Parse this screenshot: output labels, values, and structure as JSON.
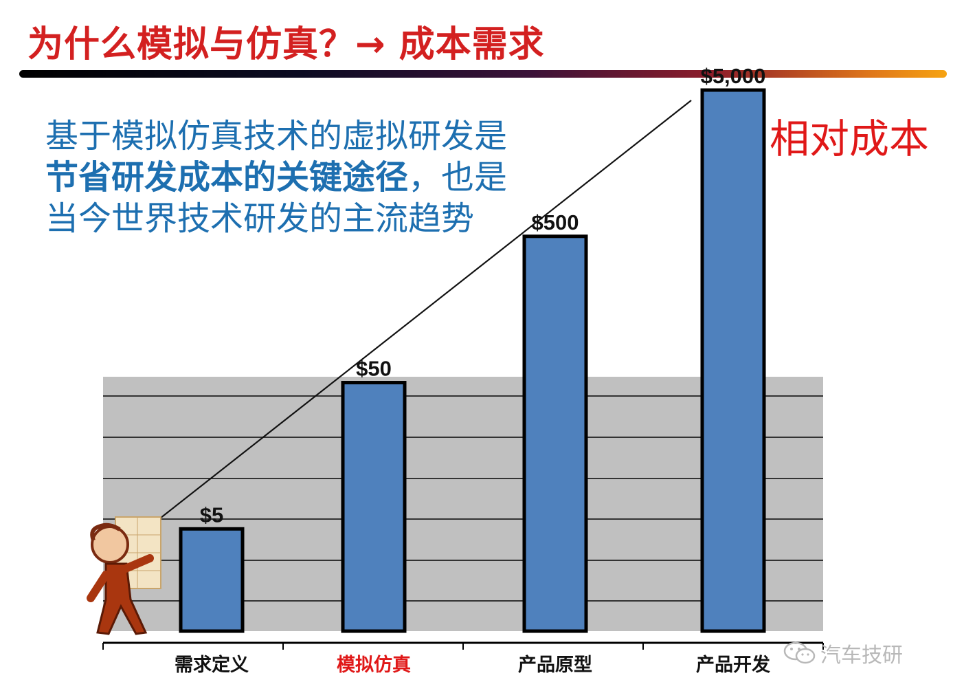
{
  "slide": {
    "title": "为什么模拟与仿真？→ 成本需求",
    "body_line1": "基于模拟仿真技术的虚拟研发是",
    "body_line2_bold": "节省研发成本的关键途径",
    "body_line2_rest": "，也是",
    "body_line3": "当今世界技术研发的主流趋势",
    "side_label": "相对成本",
    "watermark": "汽车技研"
  },
  "colors": {
    "title": "#d32020",
    "body_text": "#1d6fb0",
    "side_label": "#e01818",
    "bar_fill": "#4f81bd",
    "bar_stroke": "#000000",
    "plot_background": "#c0c0c0",
    "highlight_category": "#e01818"
  },
  "icons": {
    "presenter": "presenter-cartoon-icon",
    "watermark": "wechat-icon"
  },
  "chart_data": {
    "type": "bar",
    "categories": [
      "需求定义",
      "模拟仿真",
      "产品原型",
      "产品开发"
    ],
    "values": [
      5,
      50,
      500,
      5000
    ],
    "value_labels": [
      "$5",
      "$50",
      "$500",
      "$5,000"
    ],
    "highlight_index": 1,
    "scale": "log",
    "grid": true,
    "trend_line": true,
    "title": "",
    "xlabel": "",
    "ylabel": ""
  }
}
